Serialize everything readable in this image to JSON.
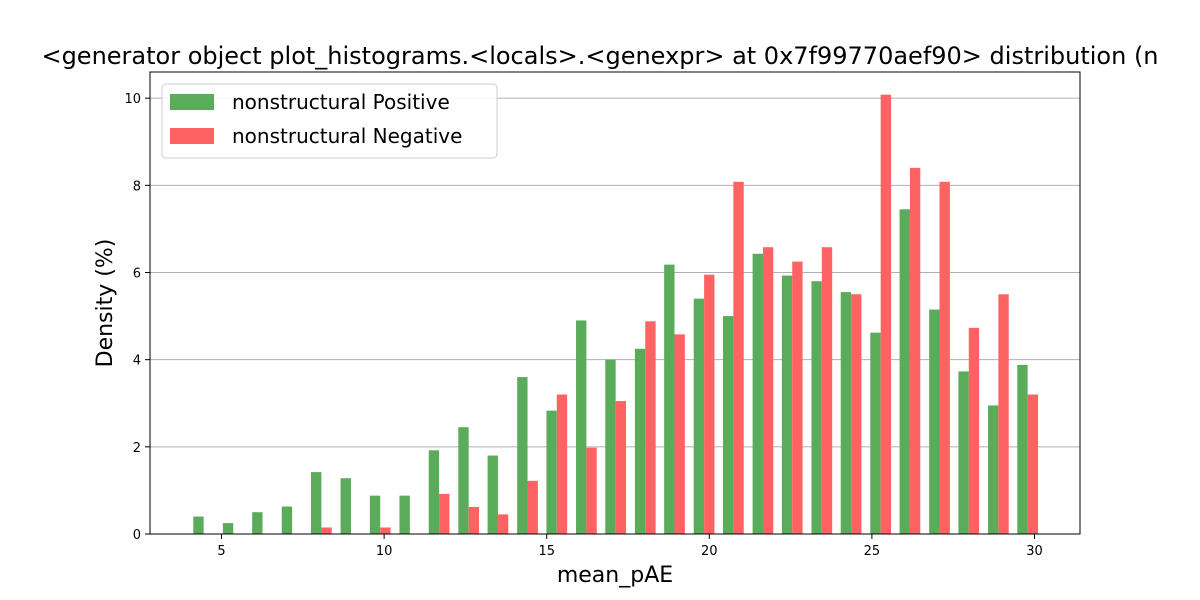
{
  "chart_data": {
    "type": "bar",
    "title": "<generator object plot_histograms.<locals>.<genexpr> at 0x7f99770aef90> distribution (n",
    "xlabel": "mean_pAE",
    "ylabel": "Density (%)",
    "xlim": [
      2.8,
      31.4
    ],
    "ylim": [
      0,
      10.6
    ],
    "xticks": [
      5,
      10,
      15,
      20,
      25,
      30
    ],
    "yticks": [
      0,
      2,
      4,
      6,
      8,
      10
    ],
    "grid": "y",
    "legend_position": "top-left",
    "bin_centers": [
      4.45,
      5.36,
      6.26,
      7.17,
      8.07,
      8.98,
      9.88,
      10.79,
      11.69,
      12.6,
      13.5,
      14.41,
      15.31,
      16.22,
      17.12,
      18.03,
      18.93,
      19.84,
      20.74,
      21.65,
      22.55,
      23.46,
      24.36,
      25.27,
      26.17,
      27.08,
      27.98,
      28.89,
      29.79
    ],
    "series": [
      {
        "name": "nonstructural Positive",
        "color": "#5aab5a",
        "values": [
          0.4,
          0.25,
          0.5,
          0.63,
          1.42,
          1.28,
          0.88,
          0.88,
          1.92,
          2.45,
          1.8,
          3.6,
          2.83,
          4.9,
          4.0,
          4.25,
          6.18,
          5.4,
          5.0,
          6.43,
          5.93,
          5.8,
          5.55,
          4.62,
          7.45,
          5.15,
          3.73,
          2.95,
          3.88
        ]
      },
      {
        "name": "nonstructural Negative",
        "color": "#ff6262",
        "values": [
          0,
          0,
          0,
          0,
          0.15,
          0,
          0.15,
          0,
          0.92,
          0.62,
          0.45,
          1.22,
          3.2,
          1.98,
          3.05,
          4.88,
          4.58,
          5.95,
          8.08,
          6.58,
          6.25,
          6.58,
          5.5,
          10.08,
          8.4,
          8.08,
          4.73,
          5.5,
          3.2
        ]
      }
    ]
  }
}
